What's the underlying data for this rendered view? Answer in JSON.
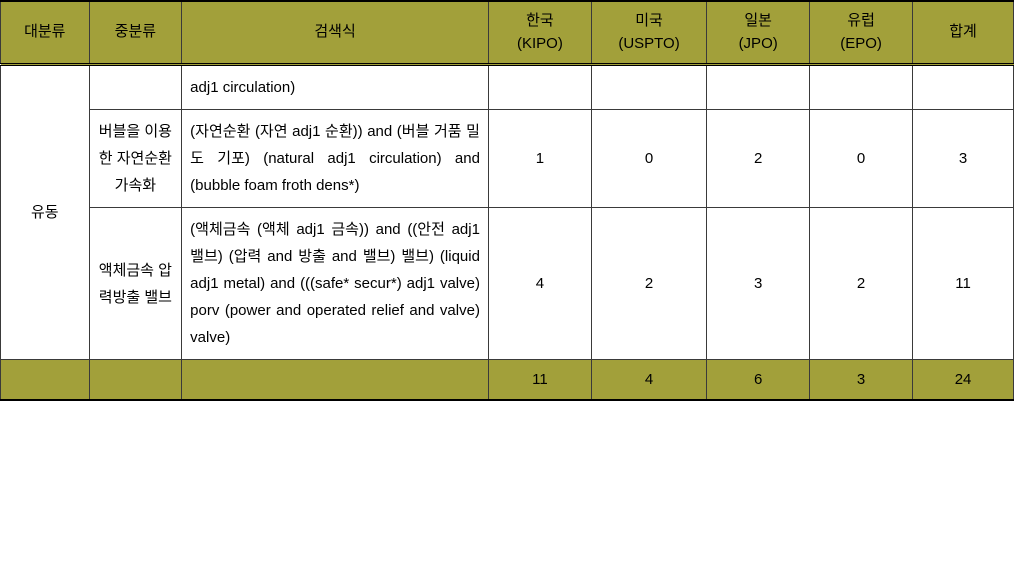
{
  "header": {
    "col1": "대분류",
    "col2": "중분류",
    "col3": "검색식",
    "col4_line1": "한국",
    "col4_line2": "(KIPO)",
    "col5_line1": "미국",
    "col5_line2": "(USPTO)",
    "col6_line1": "일본",
    "col6_line2": "(JPO)",
    "col7_line1": "유럽",
    "col7_line2": "(EPO)",
    "col8": "합계"
  },
  "category": "유동",
  "rows": [
    {
      "sub": "",
      "query": "adj1 circulation)",
      "kipo": "",
      "uspto": "",
      "jpo": "",
      "epo": "",
      "total": ""
    },
    {
      "sub": "버블을 이용한 자연순환가속화",
      "query": "(자연순환 (자연 adj1 순환)) and (버블 거품 밀도 기포)\n(natural adj1 circulation) and (bubble foam froth dens*)",
      "kipo": "1",
      "uspto": "0",
      "jpo": "2",
      "epo": "0",
      "total": "3"
    },
    {
      "sub": "액체금속 압력방출 밸브",
      "query": "(액체금속 (액체 adj1 금속)) and ((안전 adj1 밸브) (압력 and 방출 and 밸브) 밸브)\n(liquid adj1 metal) and (((safe* secur*) adj1 valve) porv (power and operated relief and valve) valve)",
      "kipo": "4",
      "uspto": "2",
      "jpo": "3",
      "epo": "2",
      "total": "11"
    }
  ],
  "totals": {
    "kipo": "11",
    "uspto": "4",
    "jpo": "6",
    "epo": "3",
    "total": "24"
  },
  "colwidths": {
    "col1": 86,
    "col2": 90,
    "col3": 298,
    "col4": 100,
    "col5": 112,
    "col6": 100,
    "col7": 100,
    "col8": 98
  }
}
